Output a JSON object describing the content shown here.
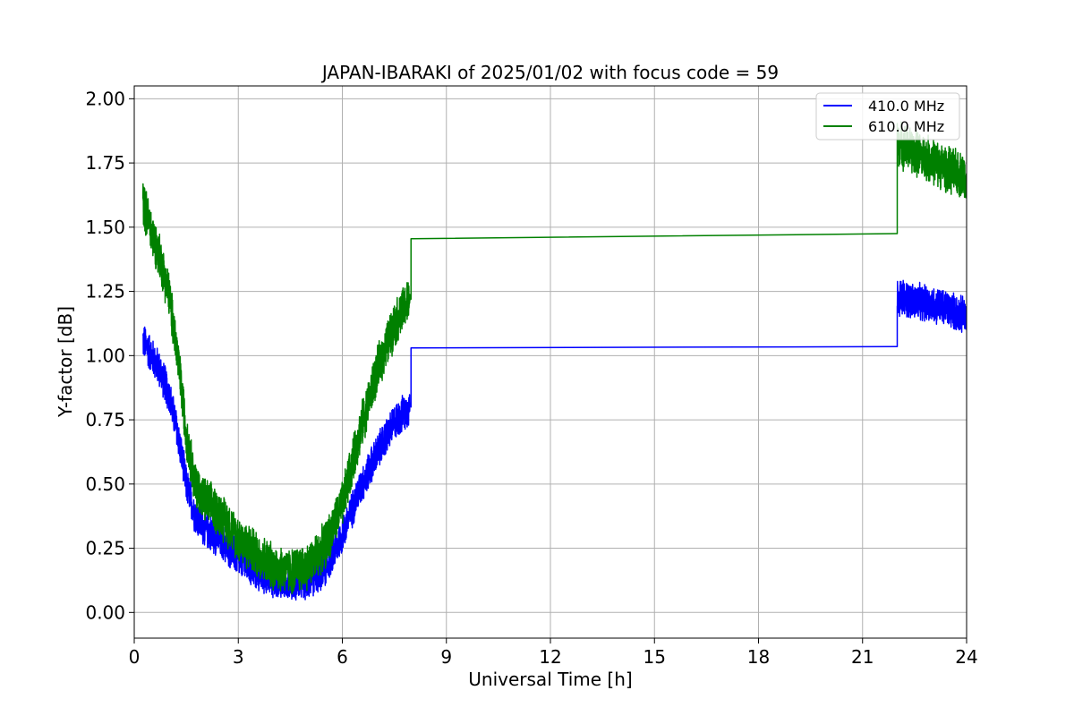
{
  "chart_data": {
    "type": "line",
    "title": "JAPAN-IBARAKI of 2025/01/02 with focus code = 59",
    "xlabel": "Universal Time [h]",
    "ylabel": "Y-factor [dB]",
    "xlim": [
      0,
      24
    ],
    "ylim": [
      -0.1,
      2.05
    ],
    "xticks": [
      0,
      3,
      6,
      9,
      12,
      15,
      18,
      21,
      24
    ],
    "xtick_labels": [
      "0",
      "3",
      "6",
      "9",
      "12",
      "15",
      "18",
      "21",
      "24"
    ],
    "yticks": [
      0.0,
      0.25,
      0.5,
      0.75,
      1.0,
      1.25,
      1.5,
      1.75,
      2.0
    ],
    "ytick_labels": [
      "0.00",
      "0.25",
      "0.50",
      "0.75",
      "1.00",
      "1.25",
      "1.50",
      "1.75",
      "2.00"
    ],
    "grid": true,
    "legend_position": "top-right",
    "series": [
      {
        "name": "410.0 MHz",
        "color": "#0000ff",
        "noise": 0.08,
        "x": [
          0.25,
          0.5,
          0.75,
          1.0,
          1.25,
          1.5,
          1.75,
          2.0,
          2.5,
          3.0,
          3.5,
          4.0,
          4.5,
          5.0,
          5.5,
          6.0,
          6.5,
          7.0,
          7.5,
          7.95
        ],
        "y": [
          1.06,
          1.0,
          0.94,
          0.85,
          0.7,
          0.5,
          0.38,
          0.33,
          0.28,
          0.21,
          0.16,
          0.13,
          0.12,
          0.12,
          0.17,
          0.3,
          0.48,
          0.62,
          0.74,
          0.8
        ],
        "gap_x": [
          7.98,
          21.98
        ],
        "gap_y": [
          1.03,
          1.035
        ],
        "tail_x": [
          22.0,
          22.5,
          23.0,
          23.5,
          24.0
        ],
        "tail_y": [
          1.23,
          1.21,
          1.2,
          1.18,
          1.15
        ]
      },
      {
        "name": "610.0 MHz",
        "color": "#008000",
        "noise": 0.1,
        "x": [
          0.25,
          0.5,
          0.75,
          1.0,
          1.25,
          1.5,
          1.75,
          2.0,
          2.5,
          3.0,
          3.5,
          4.0,
          4.5,
          5.0,
          5.5,
          6.0,
          6.5,
          7.0,
          7.5,
          7.95
        ],
        "y": [
          1.6,
          1.48,
          1.38,
          1.24,
          1.0,
          0.7,
          0.5,
          0.44,
          0.38,
          0.29,
          0.23,
          0.18,
          0.16,
          0.18,
          0.26,
          0.42,
          0.7,
          0.94,
          1.12,
          1.22
        ],
        "gap_x": [
          7.98,
          21.98
        ],
        "gap_y": [
          1.455,
          1.475
        ],
        "tail_x": [
          22.0,
          22.5,
          23.0,
          23.5,
          24.0
        ],
        "tail_y": [
          1.83,
          1.79,
          1.76,
          1.72,
          1.7
        ]
      }
    ]
  }
}
